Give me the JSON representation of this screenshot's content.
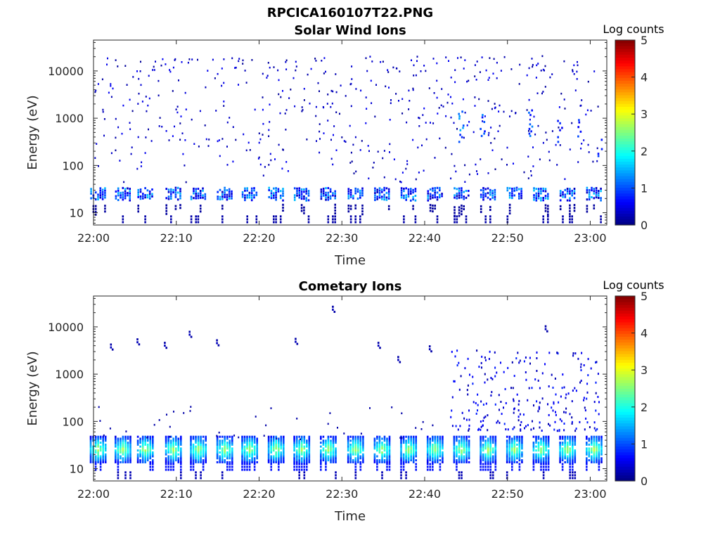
{
  "figure": {
    "title": "RPCICA160107T22.PNG"
  },
  "chart_data": [
    {
      "type": "heatmap",
      "title": "Solar Wind Ions",
      "xlabel": "Time",
      "ylabel": "Energy (eV)",
      "x_ticks": [
        "22:00",
        "22:10",
        "22:20",
        "22:30",
        "22:40",
        "22:50",
        "23:00"
      ],
      "x_range_minutes": [
        0,
        62
      ],
      "y_ticks": [
        "10",
        "100",
        "1000",
        "10000"
      ],
      "y_scale": "log",
      "y_range": [
        5.5,
        45000
      ],
      "colorbar": {
        "label": "Log counts",
        "ticks": [
          "0",
          "1",
          "2",
          "3",
          "4",
          "5"
        ],
        "range": [
          0,
          5
        ],
        "colormap": "jet"
      },
      "band_center_minutes": [
        0.5,
        3.5,
        6.2,
        9.6,
        12.6,
        15.8,
        18.8,
        22.0,
        25.1,
        28.3,
        31.6,
        34.8,
        38.0,
        41.2,
        44.4,
        47.6,
        50.8,
        54.0,
        57.2,
        60.4
      ],
      "low_energy_band_ev": [
        17,
        32
      ],
      "low_energy_band_log_counts": 1.0,
      "scattered_high_energy_ev": [
        40,
        20000
      ],
      "burst_features": [
        {
          "t": 44.3,
          "e": [
            300,
            1400
          ],
          "v": 1.5
        },
        {
          "t": 46.9,
          "e": [
            400,
            1200
          ],
          "v": 1.2
        },
        {
          "t": 52.6,
          "e": [
            400,
            1400
          ],
          "v": 1.2
        },
        {
          "t": 56.2,
          "e": [
            300,
            1000
          ],
          "v": 1.0
        },
        {
          "t": 58.7,
          "e": [
            350,
            900
          ],
          "v": 1.0
        },
        {
          "t": 61.0,
          "e": [
            150,
            500
          ],
          "v": 0.9
        }
      ]
    },
    {
      "type": "heatmap",
      "title": "Cometary Ions",
      "xlabel": "Time",
      "ylabel": "Energy (eV)",
      "x_ticks": [
        "22:00",
        "22:10",
        "22:20",
        "22:30",
        "22:40",
        "22:50",
        "23:00"
      ],
      "x_range_minutes": [
        0,
        62
      ],
      "y_ticks": [
        "10",
        "100",
        "1000",
        "10000"
      ],
      "y_scale": "log",
      "y_range": [
        5.5,
        45000
      ],
      "colorbar": {
        "label": "Log counts",
        "ticks": [
          "0",
          "1",
          "2",
          "3",
          "4",
          "5"
        ],
        "range": [
          0,
          5
        ],
        "colormap": "jet"
      },
      "band_center_minutes": [
        0.5,
        3.5,
        6.2,
        9.6,
        12.6,
        15.8,
        18.8,
        22.0,
        25.1,
        28.3,
        31.6,
        34.8,
        38.0,
        41.2,
        44.4,
        47.6,
        50.8,
        54.0,
        57.2,
        60.4
      ],
      "low_energy_band_ev": [
        13,
        45
      ],
      "low_energy_band_peak_log_counts": 2.8,
      "high_energy_activity_after_minute": 43,
      "high_energy_activity_ev": [
        60,
        3000
      ],
      "sparse_high_energy_points": [
        {
          "t": 2.0,
          "e": 3500
        },
        {
          "t": 5.2,
          "e": 4500
        },
        {
          "t": 8.5,
          "e": 3800
        },
        {
          "t": 11.5,
          "e": 6500
        },
        {
          "t": 14.8,
          "e": 4300
        },
        {
          "t": 24.3,
          "e": 4600
        },
        {
          "t": 28.8,
          "e": 22000
        },
        {
          "t": 34.3,
          "e": 3800
        },
        {
          "t": 36.7,
          "e": 1900
        },
        {
          "t": 40.5,
          "e": 3200
        },
        {
          "t": 54.5,
          "e": 8500
        }
      ]
    }
  ]
}
